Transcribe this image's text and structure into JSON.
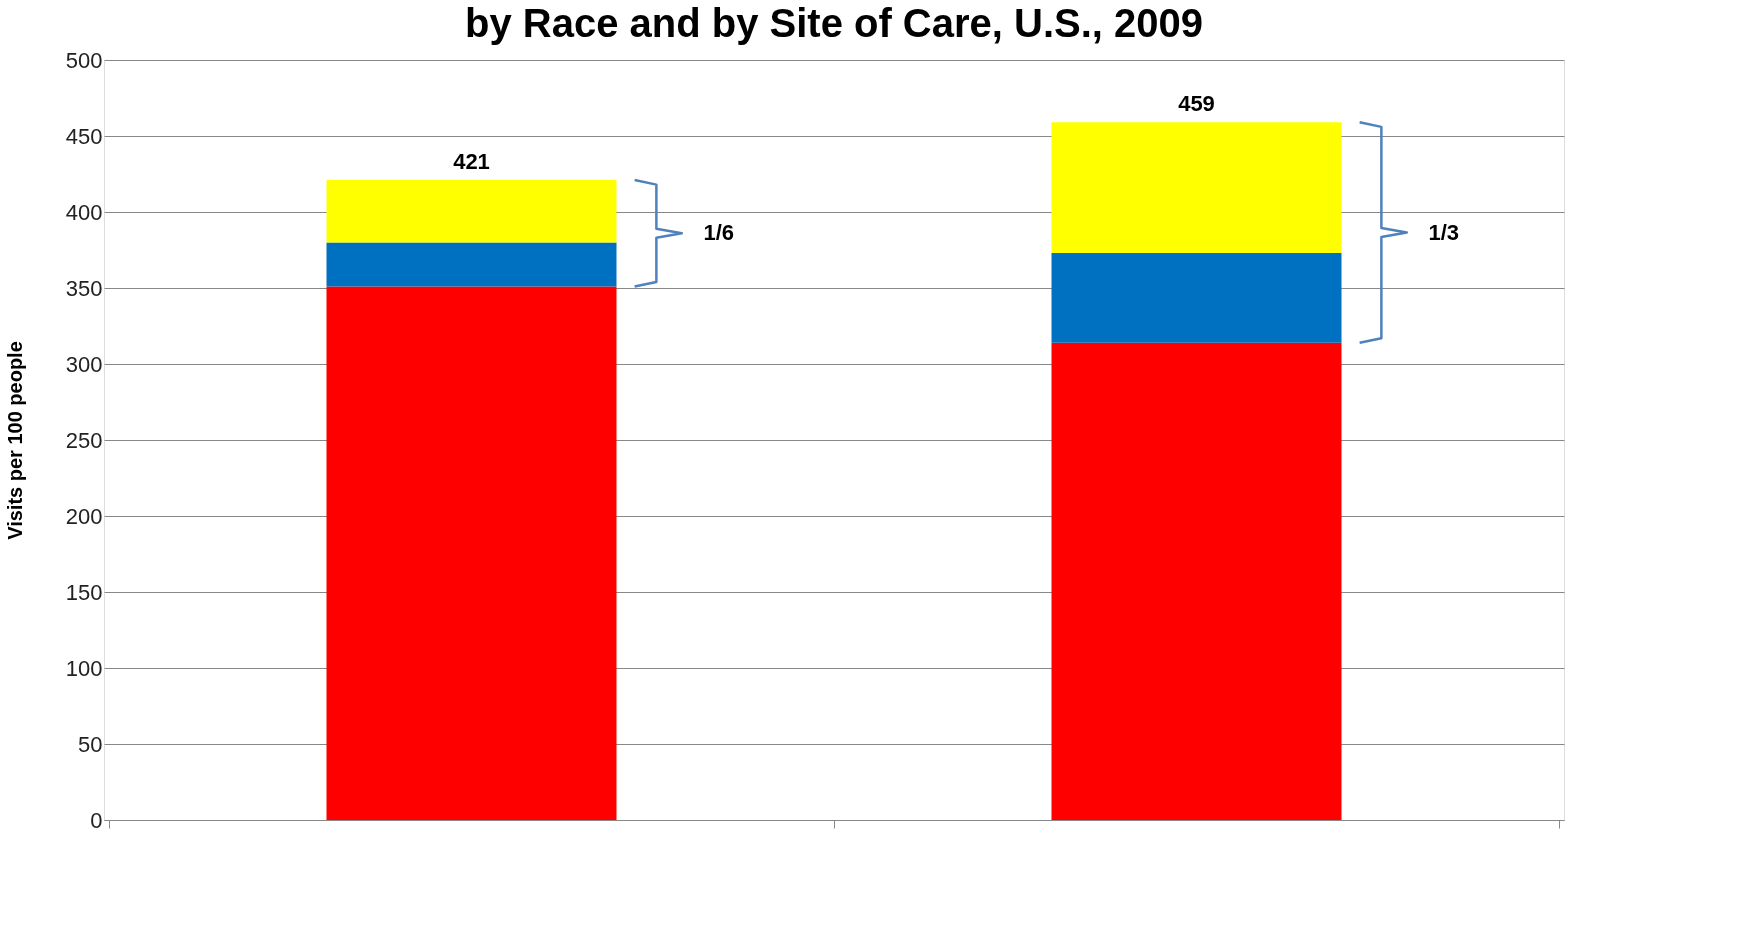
{
  "chart_data": {
    "type": "bar",
    "title": "by Race and by Site of Care, U.S., 2009",
    "ylabel": "Visits per 100 people",
    "categories": [
      null,
      null
    ],
    "stacked": true,
    "series": [
      {
        "color": "#ff0000",
        "values": [
          351,
          314
        ]
      },
      {
        "color": "#0070c0",
        "values": [
          29,
          59
        ]
      },
      {
        "color": "#ffff00",
        "values": [
          41,
          86
        ]
      }
    ],
    "totals": [
      "421",
      "459"
    ],
    "annotations": [
      "1/6",
      "1/3"
    ],
    "ylim": [
      0,
      500
    ],
    "yticks": [
      0,
      50,
      100,
      150,
      200,
      250,
      300,
      350,
      400,
      450,
      500
    ],
    "grid": "y"
  }
}
